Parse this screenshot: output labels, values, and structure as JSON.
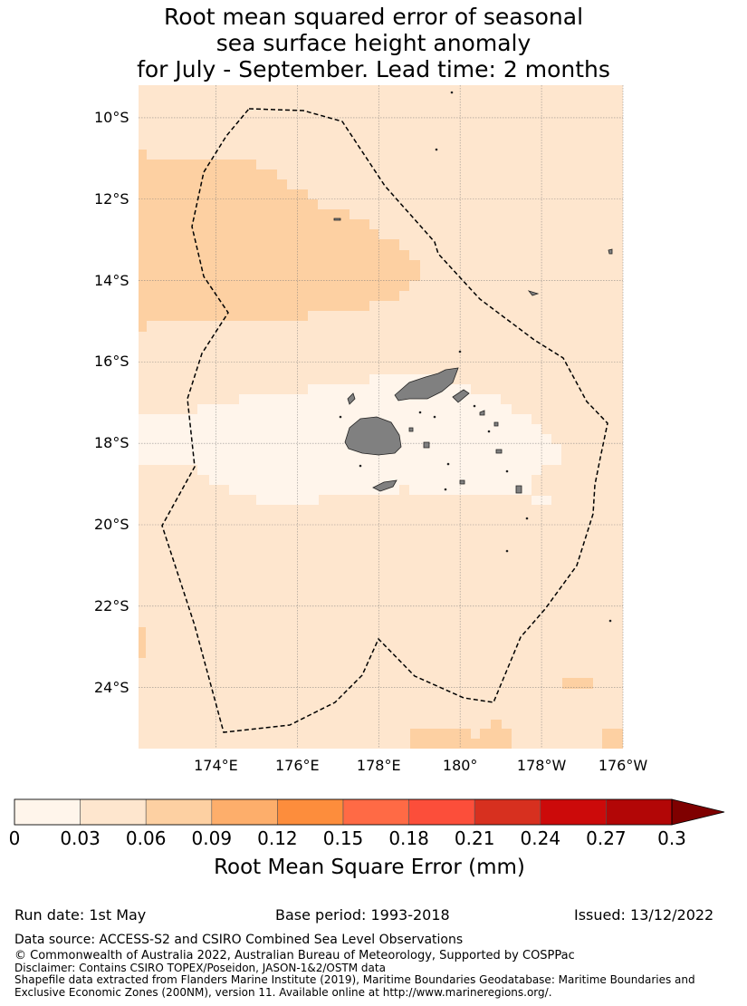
{
  "title": {
    "line1": "Root mean squared error of seasonal",
    "line2": "sea surface height anomaly",
    "line3": "for July - September. Lead time: 2 months"
  },
  "map": {
    "lat_labels": [
      "10°S",
      "12°S",
      "14°S",
      "16°S",
      "18°S",
      "20°S",
      "22°S",
      "24°S"
    ],
    "lon_labels": [
      "174°E",
      "176°E",
      "178°E",
      "180°",
      "178°W",
      "176°W"
    ],
    "lat_values": [
      -10,
      -12,
      -14,
      -16,
      -18,
      -20,
      -22,
      -24
    ],
    "lon_values": [
      174,
      176,
      178,
      180,
      182,
      184
    ],
    "extent": {
      "lon_min": 172.1,
      "lon_max": 184.0,
      "lat_min": -25.5,
      "lat_max": -9.2
    },
    "land_color": "#808080",
    "eez_boundary_style": "dashed",
    "grid": true
  },
  "colorbar": {
    "ticks": [
      "0",
      "0.03",
      "0.06",
      "0.09",
      "0.12",
      "0.15",
      "0.18",
      "0.21",
      "0.24",
      "0.27",
      "0.3"
    ],
    "colors": [
      "#fff5eb",
      "#fee6ce",
      "#fdd0a2",
      "#fdae6b",
      "#fd8d3c",
      "#ff6a45",
      "#fc4e3a",
      "#d7301f",
      "#cc0a0a",
      "#b20606"
    ],
    "extend_color": "#7f0000",
    "label": "Root Mean Square Error (mm)"
  },
  "footer": {
    "run_date": "Run date: 1st May",
    "base_period": "Base period: 1993-2018",
    "issued": "Issued: 13/12/2022",
    "data_source": "Data source: ACCESS-S2 and CSIRO Combined Sea Level Observations",
    "copyright": "© Commonwealth of Australia 2022, Australian Bureau of Meteorology, Supported by COSPPac",
    "disclaimer": "Disclaimer: Contains CSIRO TOPEX/Poseidon, JASON-1&2/OSTM data",
    "shapefile1": "Shapefile data extracted from Flanders Marine Institute (2019), Maritime Boundaries Geodatabase: Maritime Boundaries and",
    "shapefile2": "Exclusive Economic Zones (200NM), version 11. Available online at http://www.marineregions.org/."
  }
}
